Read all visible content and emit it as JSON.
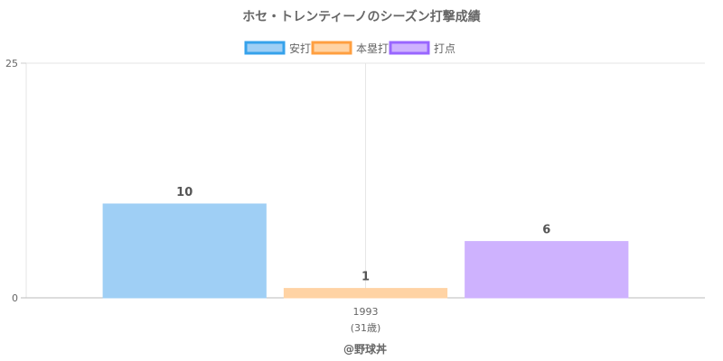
{
  "chart_data": {
    "type": "bar",
    "title": "ホセ・トレンティーノのシーズン打撃成績",
    "categories": [
      "1993"
    ],
    "category_sublabels": [
      "(31歳)"
    ],
    "series": [
      {
        "name": "安打",
        "values": [
          10
        ],
        "color": "#9fcff5",
        "border_color": "#36a2eb"
      },
      {
        "name": "本塁打",
        "values": [
          1
        ],
        "color": "#ffd3a4",
        "border_color": "#ff9f40"
      },
      {
        "name": "打点",
        "values": [
          6
        ],
        "color": "#ceb2fe",
        "border_color": "#9966ff"
      }
    ],
    "xlabel": "",
    "ylabel": "",
    "ylim": [
      0,
      25
    ],
    "y_ticks": [
      "0",
      "25"
    ],
    "grid": true,
    "legend_position": "top",
    "data_labels": true
  },
  "footer": {
    "credit": "@野球丼"
  }
}
